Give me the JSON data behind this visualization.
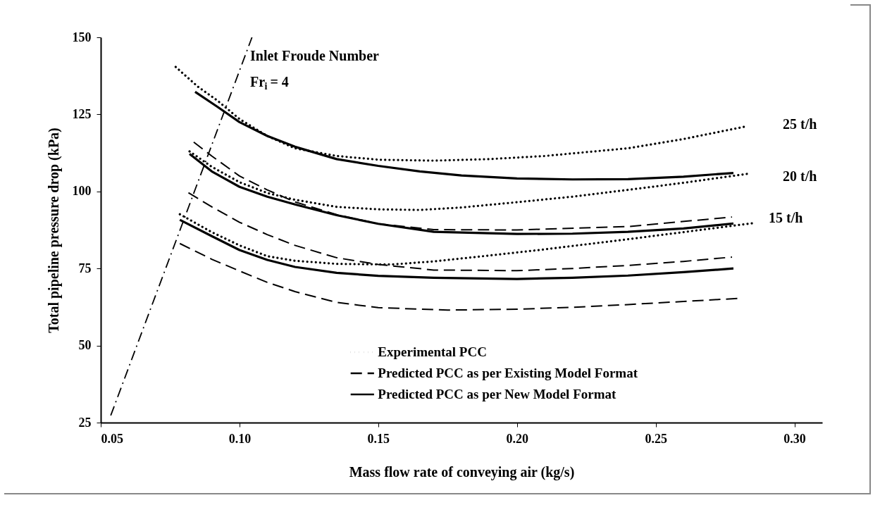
{
  "chart_data": {
    "type": "line",
    "xlabel": "Mass flow rate of conveying air (kg/s)",
    "ylabel": "Total pipeline pressure drop (kPa)",
    "xlim": [
      0.05,
      0.31
    ],
    "xticks": [
      {
        "value": 0.05,
        "label": "0.05"
      },
      {
        "value": 0.1,
        "label": "0.10"
      },
      {
        "value": 0.15,
        "label": "0.15"
      },
      {
        "value": 0.2,
        "label": "0.20"
      },
      {
        "value": 0.25,
        "label": "0.25"
      },
      {
        "value": 0.3,
        "label": "0.30"
      }
    ],
    "ylim": [
      25,
      150
    ],
    "yticks": [
      25,
      50,
      75,
      100,
      125,
      150
    ],
    "grid": false,
    "legend": "bottom",
    "annotations": [
      "Inlet Froude Number",
      "Fr$_{i}$ = 4",
      "25 t/h",
      "20 t/h",
      "15 t/h"
    ],
    "series": [
      {
        "name": "Experimental PCC",
        "color": "#000000",
        "line_style": "dotted",
        "x": [
          0.077,
          0.085,
          0.092,
          0.1,
          0.11,
          0.12,
          0.135,
          0.15,
          0.17,
          0.19,
          0.21,
          0.24,
          0.26,
          0.282
        ],
        "values": [
          140.4,
          134,
          129.5,
          123.5,
          118,
          114,
          111.5,
          110.3,
          110,
          110.5,
          111.5,
          114,
          117,
          121
        ]
      },
      {
        "color": "#000000",
        "line_style": "dotted",
        "x": [
          0.082,
          0.09,
          0.1,
          0.11,
          0.12,
          0.135,
          0.15,
          0.165,
          0.18,
          0.2,
          0.22,
          0.24,
          0.26,
          0.283
        ],
        "values": [
          113,
          108,
          103,
          99.5,
          97.3,
          95,
          94.2,
          94,
          94.8,
          96.5,
          98.3,
          100.5,
          102.8,
          105.7
        ]
      },
      {
        "color": "#000000",
        "line_style": "dotted",
        "x": [
          0.0785,
          0.09,
          0.1,
          0.11,
          0.12,
          0.135,
          0.155,
          0.17,
          0.19,
          0.21,
          0.24,
          0.26,
          0.285
        ],
        "values": [
          92.6,
          86.8,
          82.5,
          79,
          77.5,
          76.5,
          76.3,
          77.3,
          79.2,
          81.2,
          84.5,
          86.8,
          89.7
        ]
      },
      {
        "name": "Predicted PCC as per Existing Model Format",
        "color": "#000000",
        "line_style": "dashed",
        "x": [
          0.0835,
          0.09,
          0.1,
          0.11,
          0.12,
          0.135,
          0.15,
          0.17,
          0.2,
          0.24,
          0.2775
        ],
        "values": [
          116,
          111.5,
          105,
          100.5,
          96.6,
          92.5,
          89.5,
          87.6,
          87.5,
          88.6,
          91.7
        ]
      },
      {
        "color": "#000000",
        "line_style": "dashed",
        "x": [
          0.0816,
          0.09,
          0.1,
          0.11,
          0.12,
          0.135,
          0.15,
          0.17,
          0.2,
          0.22,
          0.24,
          0.26,
          0.2775
        ],
        "values": [
          99.6,
          95,
          90,
          86,
          82.5,
          78.5,
          76.3,
          74.5,
          74.3,
          75,
          76,
          77.3,
          78.7
        ]
      },
      {
        "color": "#000000",
        "line_style": "dashed",
        "x": [
          0.0785,
          0.09,
          0.1,
          0.11,
          0.12,
          0.135,
          0.15,
          0.175,
          0.2,
          0.22,
          0.24,
          0.26,
          0.28
        ],
        "values": [
          83.1,
          78,
          74.2,
          70.5,
          67.5,
          64,
          62.3,
          61.5,
          61.8,
          62.4,
          63.3,
          64.3,
          65.3
        ]
      },
      {
        "name": "Predicted PCC as per New Model Format",
        "color": "#000000",
        "line_style": "solid",
        "x": [
          0.084,
          0.092,
          0.1,
          0.11,
          0.12,
          0.135,
          0.15,
          0.165,
          0.18,
          0.2,
          0.22,
          0.24,
          0.26,
          0.278
        ],
        "values": [
          132.3,
          127.5,
          122.5,
          118,
          114.5,
          110.5,
          108.3,
          106.5,
          105.2,
          104.2,
          103.9,
          104,
          104.8,
          106
        ]
      },
      {
        "color": "#000000",
        "line_style": "solid",
        "x": [
          0.082,
          0.09,
          0.1,
          0.11,
          0.12,
          0.135,
          0.15,
          0.17,
          0.2,
          0.22,
          0.24,
          0.26,
          0.278
        ],
        "values": [
          112.2,
          106.5,
          101.5,
          98.3,
          95.8,
          92.3,
          89.5,
          86.9,
          86.2,
          86.3,
          86.9,
          88,
          89.6
        ]
      },
      {
        "color": "#000000",
        "line_style": "solid",
        "x": [
          0.0785,
          0.09,
          0.1,
          0.11,
          0.12,
          0.135,
          0.15,
          0.17,
          0.2,
          0.22,
          0.24,
          0.26,
          0.278
        ],
        "values": [
          90.8,
          85.5,
          81,
          77.8,
          75.5,
          73.6,
          72.6,
          72,
          71.6,
          72,
          72.7,
          73.8,
          75
        ]
      },
      {
        "color": "#000000",
        "line_style": "dashdot",
        "x": [
          0.0536,
          0.1045
        ],
        "values": [
          27.3,
          150
        ]
      }
    ]
  }
}
